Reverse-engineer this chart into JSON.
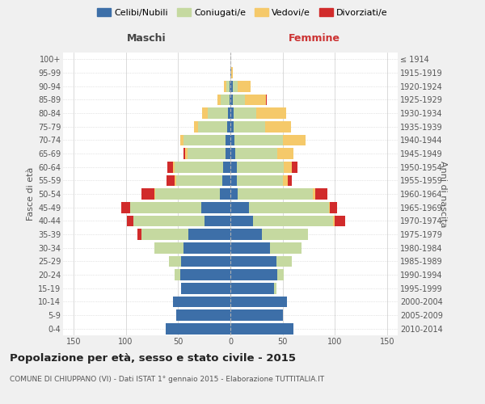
{
  "age_groups": [
    "0-4",
    "5-9",
    "10-14",
    "15-19",
    "20-24",
    "25-29",
    "30-34",
    "35-39",
    "40-44",
    "45-49",
    "50-54",
    "55-59",
    "60-64",
    "65-69",
    "70-74",
    "75-79",
    "80-84",
    "85-89",
    "90-94",
    "95-99",
    "100+"
  ],
  "birth_years": [
    "2010-2014",
    "2005-2009",
    "2000-2004",
    "1995-1999",
    "1990-1994",
    "1985-1989",
    "1980-1984",
    "1975-1979",
    "1970-1974",
    "1965-1969",
    "1960-1964",
    "1955-1959",
    "1950-1954",
    "1945-1949",
    "1940-1944",
    "1935-1939",
    "1930-1934",
    "1925-1929",
    "1920-1924",
    "1915-1919",
    "≤ 1914"
  ],
  "colors": {
    "celibi": "#3d6fa8",
    "coniugati": "#c5d9a0",
    "vedovi": "#f5c96a",
    "divorziati": "#d12b2b"
  },
  "males": {
    "celibi": [
      62,
      52,
      55,
      47,
      48,
      47,
      45,
      40,
      25,
      28,
      10,
      8,
      7,
      5,
      5,
      3,
      2,
      1,
      1,
      0,
      0
    ],
    "coniugati": [
      0,
      0,
      0,
      0,
      5,
      12,
      28,
      45,
      68,
      68,
      62,
      44,
      46,
      36,
      40,
      28,
      20,
      8,
      3,
      0,
      0
    ],
    "vedovi": [
      0,
      0,
      0,
      0,
      0,
      0,
      0,
      0,
      0,
      0,
      1,
      1,
      2,
      2,
      3,
      4,
      5,
      3,
      2,
      0,
      0
    ],
    "divorziati": [
      0,
      0,
      0,
      0,
      0,
      0,
      0,
      4,
      6,
      8,
      12,
      8,
      5,
      2,
      0,
      0,
      0,
      0,
      0,
      0,
      0
    ]
  },
  "females": {
    "celibi": [
      60,
      50,
      54,
      42,
      45,
      44,
      38,
      30,
      22,
      18,
      7,
      6,
      6,
      5,
      4,
      3,
      3,
      2,
      2,
      1,
      0
    ],
    "coniugati": [
      0,
      0,
      0,
      2,
      6,
      15,
      30,
      44,
      76,
      76,
      72,
      44,
      45,
      40,
      46,
      30,
      22,
      12,
      5,
      0,
      0
    ],
    "vedovi": [
      0,
      0,
      0,
      0,
      0,
      0,
      0,
      0,
      2,
      1,
      2,
      5,
      8,
      15,
      22,
      25,
      28,
      20,
      12,
      1,
      0
    ],
    "divorziati": [
      0,
      0,
      0,
      0,
      0,
      0,
      0,
      0,
      10,
      7,
      12,
      4,
      5,
      0,
      0,
      0,
      0,
      1,
      0,
      0,
      0
    ]
  },
  "xlim": 160,
  "title": "Popolazione per età, sesso e stato civile - 2015",
  "subtitle": "COMUNE DI CHIUPPANO (VI) - Dati ISTAT 1° gennaio 2015 - Elaborazione TUTTITALIA.IT",
  "xlabel_left": "Maschi",
  "xlabel_right": "Femmine",
  "ylabel_left": "Fasce di età",
  "ylabel_right": "Anni di nascita",
  "bg_color": "#f0f0f0",
  "plot_bg_color": "#ffffff",
  "legend_labels": [
    "Celibi/Nubili",
    "Coniugati/e",
    "Vedovi/e",
    "Divorziati/e"
  ]
}
